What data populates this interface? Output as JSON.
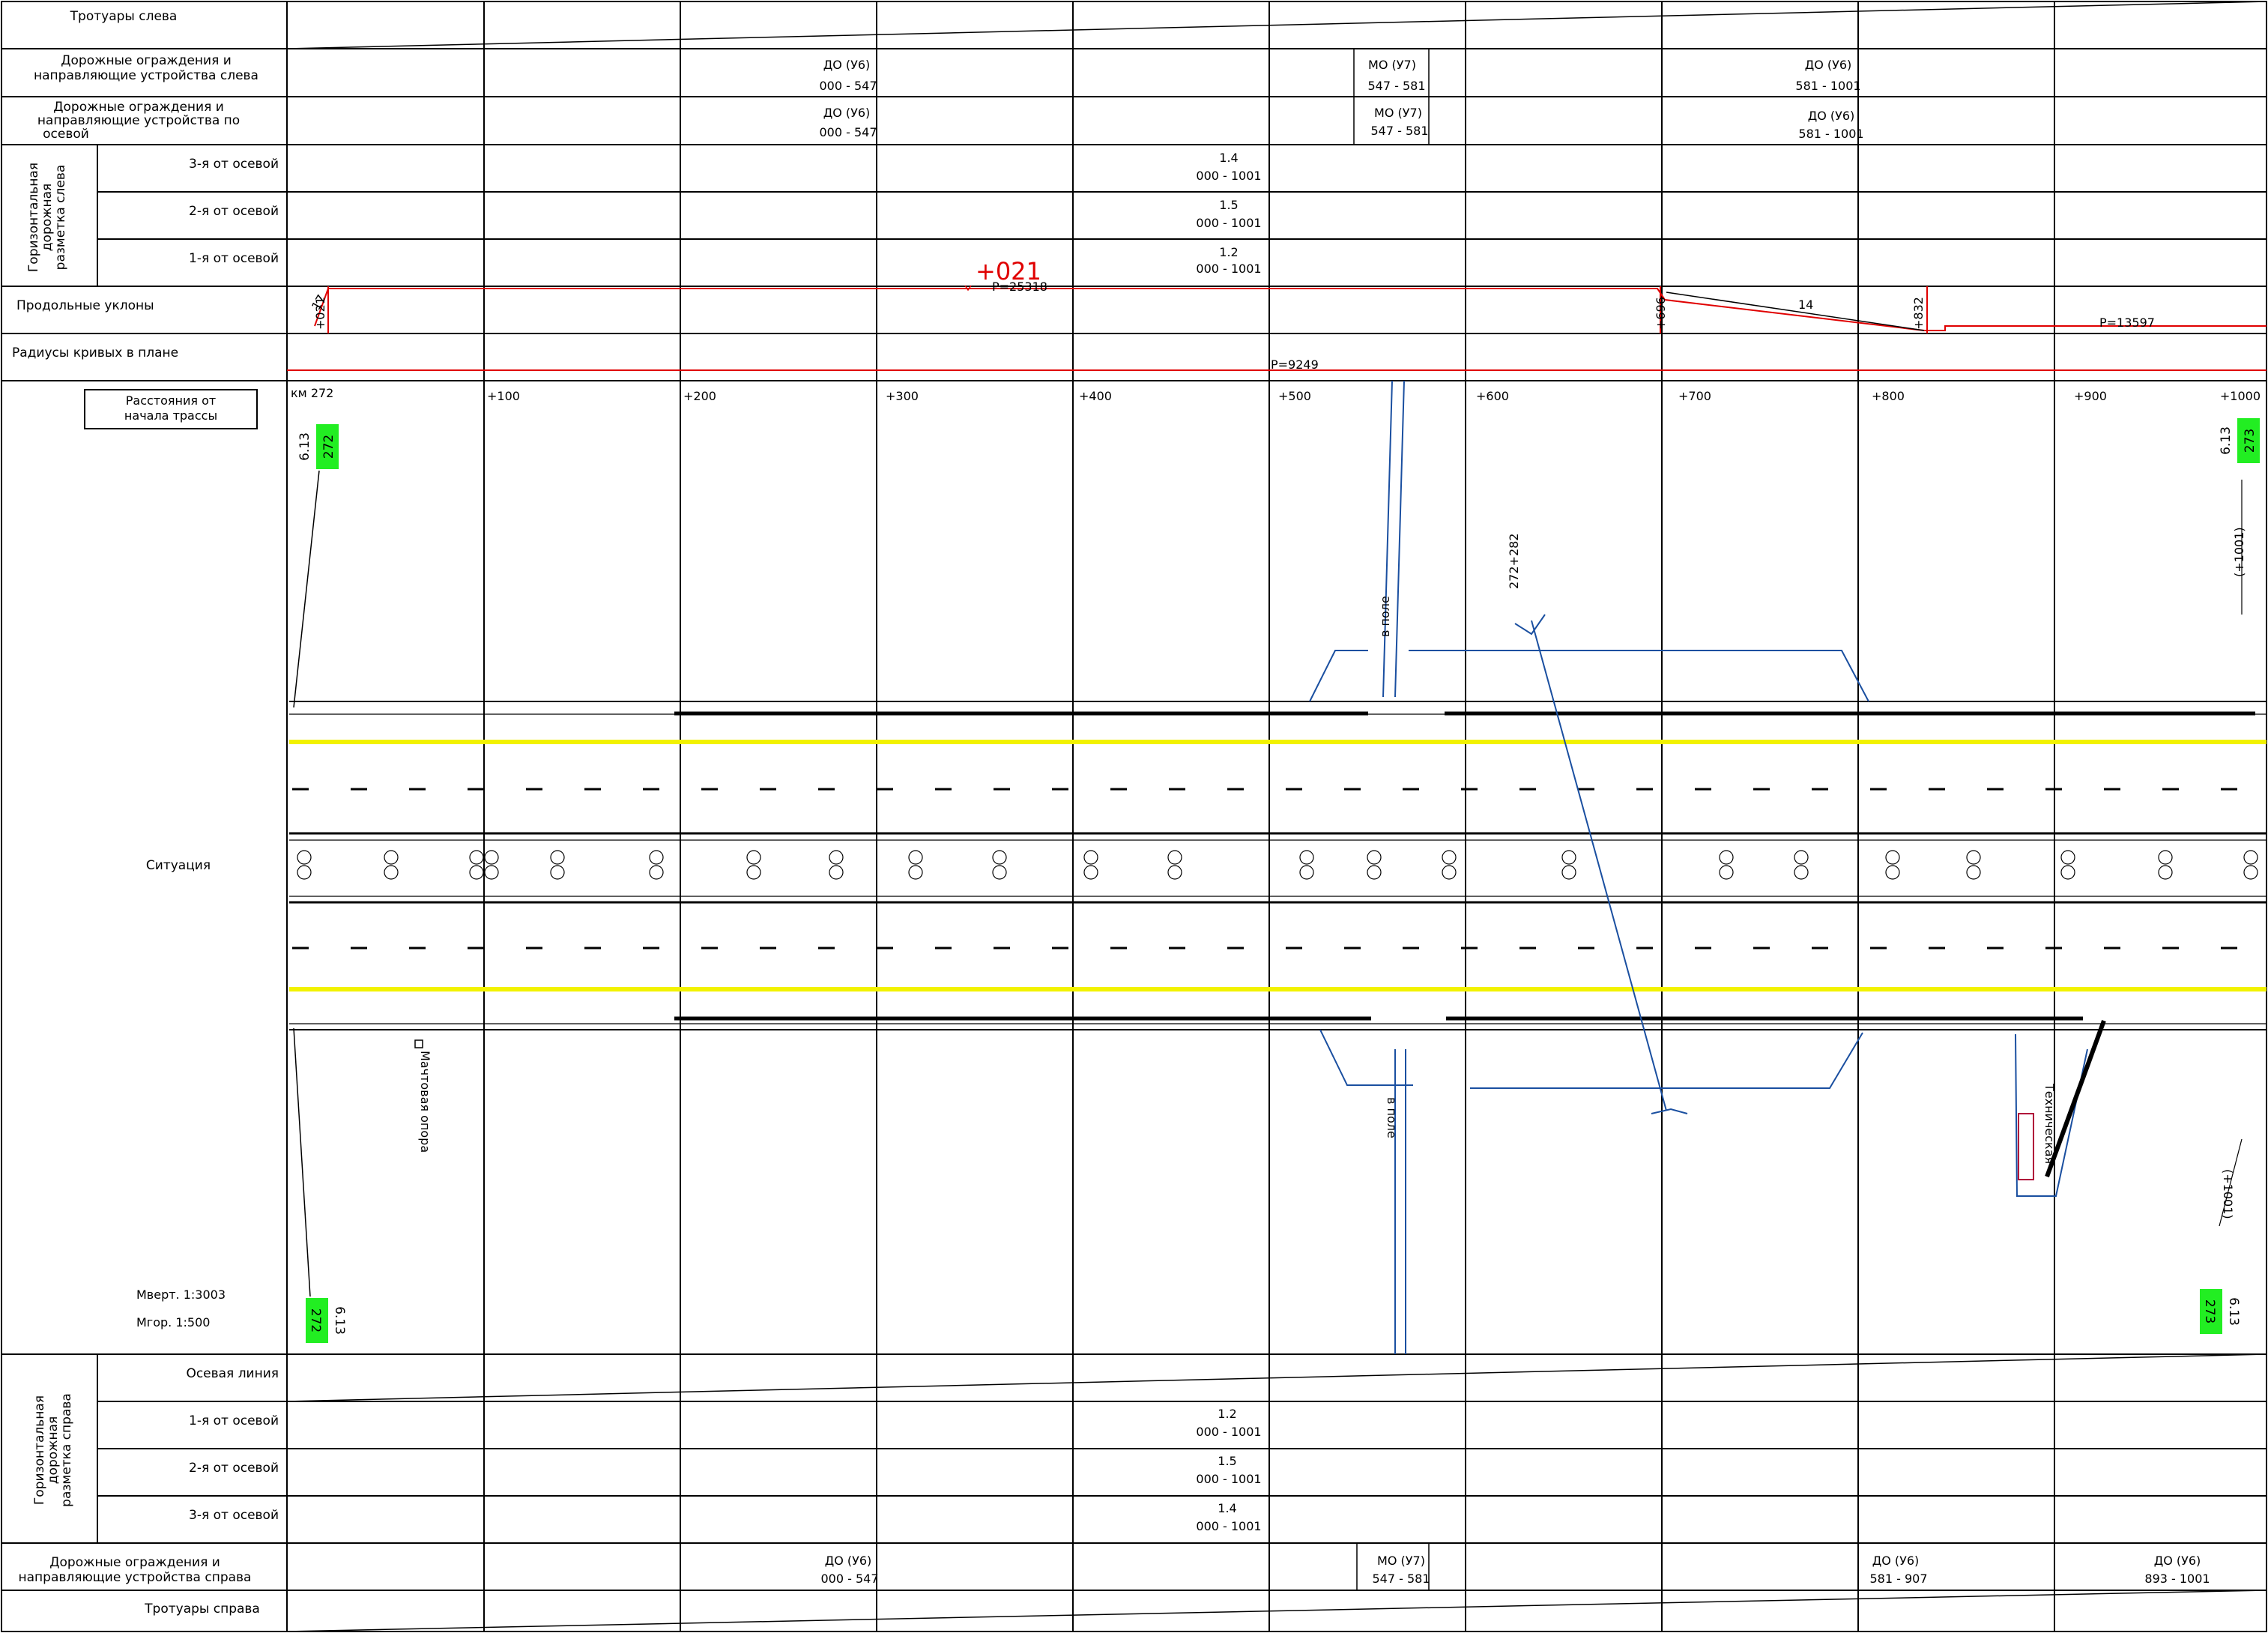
{
  "rows_top": {
    "sidewalk_left": "Тротуары слева",
    "barriers_left": [
      "Дорожные ограждения и",
      "направляющие устройства слева"
    ],
    "barriers_axis": [
      "Дорожные ограждения и",
      "направляющие устройства по",
      "осевой"
    ],
    "marking_left_group": [
      "Горизонтальная",
      "дорожная",
      "разметка слева"
    ],
    "marking_left_3": "3-я от осевой",
    "marking_left_2": "2-я от осевой",
    "marking_left_1": "1-я от осевой",
    "slopes": "Продольные уклоны",
    "radii": "Радиусы кривых в плане"
  },
  "barriers_left_values": [
    {
      "type": "ДО (У6)",
      "range": "000 - 547"
    },
    {
      "type": "МО (У7)",
      "range": "547 - 581"
    },
    {
      "type": "ДО (У6)",
      "range": "581 - 1001"
    }
  ],
  "barriers_axis_values": [
    {
      "type": "ДО (У6)",
      "range": "000 - 547"
    },
    {
      "type": "МО (У7)",
      "range": "547 - 581"
    },
    {
      "type": "ДО (У6)",
      "range": "581 - 1001"
    }
  ],
  "marking_left_values": {
    "m3": {
      "type": "1.4",
      "range": "000 - 1001"
    },
    "m2": {
      "type": "1.5",
      "range": "000 - 1001"
    },
    "m1": {
      "type": "1.2",
      "range": "000 - 1001"
    }
  },
  "profile": {
    "big_mark": "+021",
    "radius_top": "Р=25318",
    "mark_021": "+021",
    "mark_696": "+696",
    "grade_14": "14",
    "mark_832": "+832",
    "radius_right": "Р=13597",
    "tick_small": "17"
  },
  "plan_radius": "Р=9249",
  "situation": {
    "distance_box": [
      "Расстояния от",
      "начала трассы"
    ],
    "km_label": "км 272",
    "stations": [
      "+100",
      "+200",
      "+300",
      "+400",
      "+500",
      "+600",
      "+700",
      "+800",
      "+900",
      "+1000"
    ],
    "label": "Ситуация",
    "scale_v": "Мверт. 1:3003",
    "scale_h": "Мгор.   1:500",
    "sign_code": "6.13",
    "km_272": "272",
    "km_273": "273",
    "to_field": "в поле",
    "pipe": "272+282",
    "plus_1001": "(+1001)",
    "mast": "Мачтовая опора",
    "technical": "Техническая"
  },
  "rows_bottom": {
    "marking_right_group": [
      "Горизонтальная",
      "дорожная",
      "разметка справа"
    ],
    "axis_line": "Осевая линия",
    "marking_right_1": "1-я от осевой",
    "marking_right_2": "2-я от осевой",
    "marking_right_3": "3-я от осевой",
    "barriers_right": [
      "Дорожные ограждения и",
      "направляющие устройства справа"
    ],
    "sidewalk_right": "Тротуары справа"
  },
  "marking_right_values": {
    "m1": {
      "type": "1.2",
      "range": "000 - 1001"
    },
    "m2": {
      "type": "1.5",
      "range": "000 - 1001"
    },
    "m3": {
      "type": "1.4",
      "range": "000 - 1001"
    }
  },
  "barriers_right_values": [
    {
      "type": "ДО (У6)",
      "range": "000 - 547"
    },
    {
      "type": "МО (У7)",
      "range": "547 - 581"
    },
    {
      "type": "ДО (У6)",
      "range": "581 - 907"
    },
    {
      "type": "ДО (У6)",
      "range": "893 - 1001"
    }
  ],
  "colors": {
    "grid": "#000000",
    "profile": "#e00000",
    "pipe": "#1a4fa0",
    "marking_yellow": "#f2f200",
    "km_badge": "#22ee22"
  }
}
